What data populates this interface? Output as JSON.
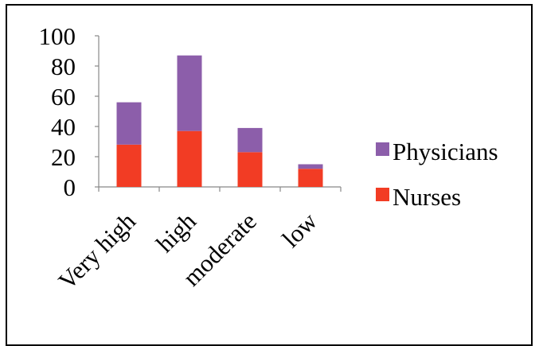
{
  "chart_data": {
    "type": "bar",
    "stacked": true,
    "categories": [
      "Very high",
      "high",
      "moderate",
      "low"
    ],
    "series": [
      {
        "name": "Nurses",
        "values": [
          28,
          37,
          23,
          12
        ],
        "color": "#f23c24"
      },
      {
        "name": "Physicians",
        "values": [
          28,
          50,
          16,
          3
        ],
        "color": "#8c5eaa"
      }
    ],
    "ylim": [
      0,
      100
    ],
    "yticks": [
      0,
      20,
      40,
      60,
      80,
      100
    ],
    "grid": false,
    "legend": {
      "position": "right",
      "order": [
        "Physicians",
        "Nurses"
      ]
    },
    "title": "",
    "xlabel": "",
    "ylabel": ""
  }
}
